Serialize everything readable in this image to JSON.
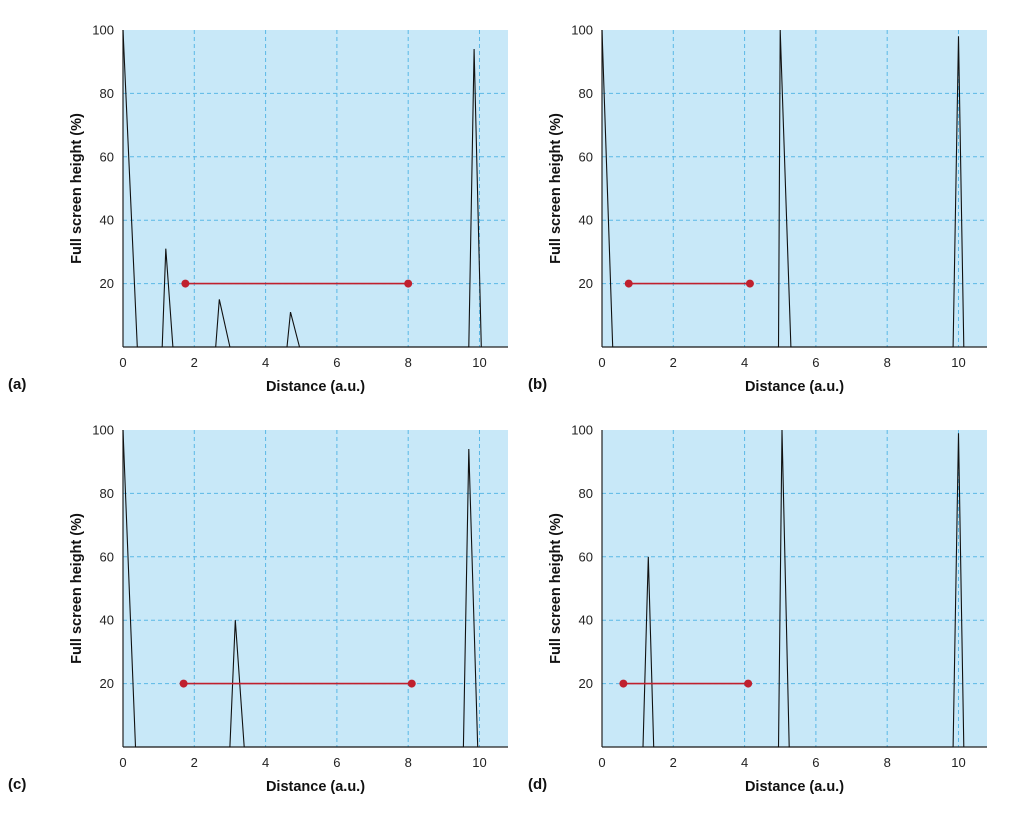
{
  "colors": {
    "plot_background": "#c8e8f8",
    "grid": "#5ab8e6",
    "trace": "#111111",
    "marker_line": "#c0202e",
    "axis": "#222222"
  },
  "chart_data": [
    {
      "type": "line",
      "panel_label": "(a)",
      "xlabel": "Distance (a.u.)",
      "ylabel": "Full screen height (%)",
      "xlim": [
        0,
        10.8
      ],
      "ylim": [
        0,
        100
      ],
      "x_ticks": [
        "0",
        "2",
        "4",
        "6",
        "8",
        "10"
      ],
      "y_ticks": [
        "20",
        "40",
        "60",
        "80",
        "100"
      ],
      "grid": true,
      "series": [
        {
          "x": [
            0,
            0.4,
            1.1,
            1.2,
            1.4,
            2.6,
            2.7,
            3.0,
            4.6,
            4.7,
            4.95,
            9.7,
            9.85,
            10.05
          ],
          "y": [
            100,
            0,
            0,
            31,
            0,
            0,
            15,
            0,
            0,
            11,
            0,
            0,
            94,
            0
          ]
        }
      ],
      "marker_line": {
        "x": [
          1.75,
          8.0
        ],
        "y": 20
      }
    },
    {
      "type": "line",
      "panel_label": "(b)",
      "xlabel": "Distance (a.u.)",
      "ylabel": "Full screen height (%)",
      "xlim": [
        0,
        10.8
      ],
      "ylim": [
        0,
        100
      ],
      "x_ticks": [
        "0",
        "2",
        "4",
        "6",
        "8",
        "10"
      ],
      "y_ticks": [
        "20",
        "40",
        "60",
        "80",
        "100"
      ],
      "grid": true,
      "series": [
        {
          "x": [
            0,
            0.3,
            4.95,
            5.0,
            5.3,
            9.85,
            10.0,
            10.15
          ],
          "y": [
            100,
            0,
            0,
            100,
            0,
            0,
            98,
            0
          ]
        }
      ],
      "marker_line": {
        "x": [
          0.75,
          4.15
        ],
        "y": 20
      }
    },
    {
      "type": "line",
      "panel_label": "(c)",
      "xlabel": "Distance (a.u.)",
      "ylabel": "Full screen height (%)",
      "xlim": [
        0,
        10.8
      ],
      "ylim": [
        0,
        100
      ],
      "x_ticks": [
        "0",
        "2",
        "4",
        "6",
        "8",
        "10"
      ],
      "y_ticks": [
        "20",
        "40",
        "60",
        "80",
        "100"
      ],
      "grid": true,
      "series": [
        {
          "x": [
            0,
            0.35,
            3.0,
            3.15,
            3.4,
            9.55,
            9.7,
            9.95
          ],
          "y": [
            100,
            0,
            0,
            40,
            0,
            0,
            94,
            0
          ]
        }
      ],
      "marker_line": {
        "x": [
          1.7,
          8.1
        ],
        "y": 20
      }
    },
    {
      "type": "line",
      "panel_label": "(d)",
      "xlabel": "Distance (a.u.)",
      "ylabel": "Full screen height (%)",
      "xlim": [
        0,
        10.8
      ],
      "ylim": [
        0,
        100
      ],
      "x_ticks": [
        "0",
        "2",
        "4",
        "6",
        "8",
        "10"
      ],
      "y_ticks": [
        "20",
        "40",
        "60",
        "80",
        "100"
      ],
      "grid": true,
      "series": [
        {
          "x": [
            1.15,
            1.3,
            1.45,
            4.95,
            5.05,
            5.25,
            9.85,
            10.0,
            10.15
          ],
          "y": [
            0,
            60,
            0,
            0,
            100,
            0,
            0,
            99,
            0
          ]
        }
      ],
      "marker_line": {
        "x": [
          0.6,
          4.1
        ],
        "y": 20
      }
    }
  ]
}
